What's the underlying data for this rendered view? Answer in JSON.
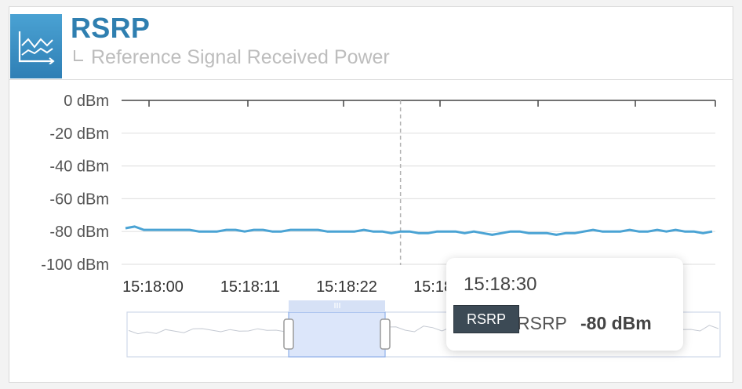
{
  "header": {
    "title": "RSRP",
    "subtitle": "Reference Signal Received Power"
  },
  "colors": {
    "accent": "#2f7fb0",
    "series_line": "#4aa3d4",
    "slider_fill": "#dce6fa"
  },
  "icon": "line-chart-icon",
  "chart_data": {
    "type": "line",
    "y_ticks": [
      "0 dBm",
      "-20 dBm",
      "-40 dBm",
      "-60 dBm",
      "-80 dBm",
      "-100 dBm"
    ],
    "x_ticks": [
      "15:18:00",
      "15:18:11",
      "15:18:22",
      "15:18:33"
    ],
    "ylim": [
      -100,
      0
    ],
    "grid": true,
    "series": [
      {
        "name": "RSRP",
        "values": [
          -78,
          -77,
          -79,
          -79,
          -79,
          -79,
          -79,
          -79,
          -80,
          -80,
          -80,
          -79,
          -79,
          -80,
          -79,
          -79,
          -80,
          -80,
          -79,
          -79,
          -79,
          -79,
          -80,
          -80,
          -80,
          -80,
          -79,
          -80,
          -80,
          -81,
          -80,
          -80,
          -81,
          -81,
          -80,
          -80,
          -80,
          -81,
          -80,
          -81,
          -82,
          -81,
          -80,
          -80,
          -81,
          -81,
          -81,
          -82,
          -81,
          -81,
          -80,
          -79,
          -80,
          -80,
          -80,
          -79,
          -80,
          -80,
          -79,
          -80,
          -79,
          -80,
          -80,
          -81,
          -80
        ]
      }
    ],
    "crosshair_index": 30
  },
  "tooltip": {
    "time": "15:18:30",
    "series_name": "RSRP",
    "value": "-80 dBm"
  }
}
